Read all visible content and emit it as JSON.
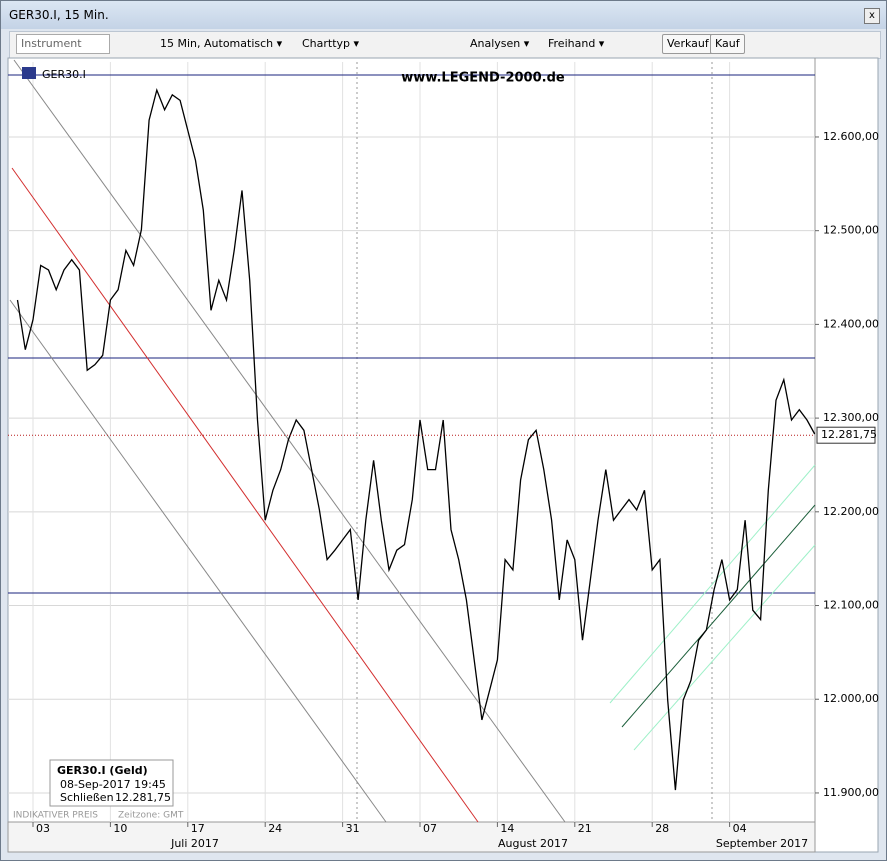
{
  "window": {
    "title": "GER30.I, 15 Min."
  },
  "toolbar": {
    "instrument": "Instrument",
    "interval": "15 Min,  Automatisch",
    "charttyp": "Charttyp",
    "analysen": "Analysen",
    "freihand": "Freihand",
    "verkauf": "Verkauf",
    "kauf": "Kauf"
  },
  "chart_data": {
    "type": "line",
    "title": "GER30.I",
    "annotation": "www.LEGEND-2000.de",
    "categories": [
      null,
      null,
      "03",
      null,
      null,
      null,
      null,
      null,
      null,
      null,
      null,
      null,
      "10",
      null,
      null,
      null,
      null,
      null,
      null,
      null,
      null,
      null,
      "17",
      null,
      null,
      null,
      null,
      null,
      null,
      null,
      null,
      null,
      "24",
      null,
      null,
      null,
      null,
      null,
      null,
      null,
      null,
      null,
      "31",
      null,
      null,
      null,
      null,
      null,
      null,
      null,
      null,
      null,
      "07",
      null,
      null,
      null,
      null,
      null,
      null,
      null,
      null,
      null,
      "14",
      null,
      null,
      null,
      null,
      null,
      null,
      null,
      null,
      null,
      "21",
      null,
      null,
      null,
      null,
      null,
      null,
      null,
      null,
      null,
      "28",
      null,
      null,
      null,
      null,
      null,
      null,
      null,
      null,
      null,
      "04",
      null,
      null,
      null,
      null,
      null,
      null,
      null,
      null,
      null,
      null,
      null
    ],
    "months": [
      "Juli 2017",
      "August 2017",
      "September 2017"
    ],
    "values": [
      12426,
      12373,
      12405,
      12463,
      12458,
      12437,
      12458,
      12469,
      12458,
      12351,
      12357,
      12367,
      12426,
      12437,
      12479,
      12463,
      12501,
      12618,
      12650,
      12629,
      12645,
      12639,
      12607,
      12575,
      12522,
      12415,
      12447,
      12426,
      12479,
      12543,
      12447,
      12298,
      12191,
      12223,
      12245,
      12277,
      12298,
      12287,
      12245,
      12202,
      12149,
      12159,
      12170,
      12181,
      12106,
      12191,
      12255,
      12191,
      12138,
      12159,
      12165,
      12213,
      12298,
      12245,
      12245,
      12298,
      12181,
      12149,
      12106,
      12042,
      11978,
      12010,
      12042,
      12149,
      12138,
      12234,
      12277,
      12287,
      12245,
      12191,
      12106,
      12170,
      12149,
      12063,
      12127,
      12191,
      12245,
      12191,
      12202,
      12213,
      12202,
      12223,
      12138,
      12149,
      11999,
      11903,
      11999,
      12020,
      12063,
      12074,
      12117,
      12149,
      12106,
      12117,
      12191,
      12095,
      12085,
      12223,
      12319,
      12341,
      12298,
      12309,
      12298,
      12283
    ],
    "color": "#000000",
    "ylim": [
      11869,
      12680
    ],
    "yticks": [
      {
        "value": 11900,
        "label": "11.900,00"
      },
      {
        "value": 12000,
        "label": "12.000,00"
      },
      {
        "value": 12100,
        "label": "12.100,00"
      },
      {
        "value": 12200,
        "label": "12.200,00"
      },
      {
        "value": 12300,
        "label": "12.300,00"
      },
      {
        "value": 12400,
        "label": "12.400,00"
      },
      {
        "value": 12500,
        "label": "12.500,00"
      },
      {
        "value": 12600,
        "label": "12.600,00"
      }
    ],
    "grid": true,
    "last_price": {
      "value": 12281.75,
      "label": "12.281,75"
    },
    "info": {
      "title": "GER30.I (Geld)",
      "date": "08-Sep-2017 19:45",
      "close_label": "Schließen",
      "close_value": "12.281,75"
    },
    "footer": "INDIKATIVER PREIS",
    "timezone": "Zeitzone: GMT"
  }
}
